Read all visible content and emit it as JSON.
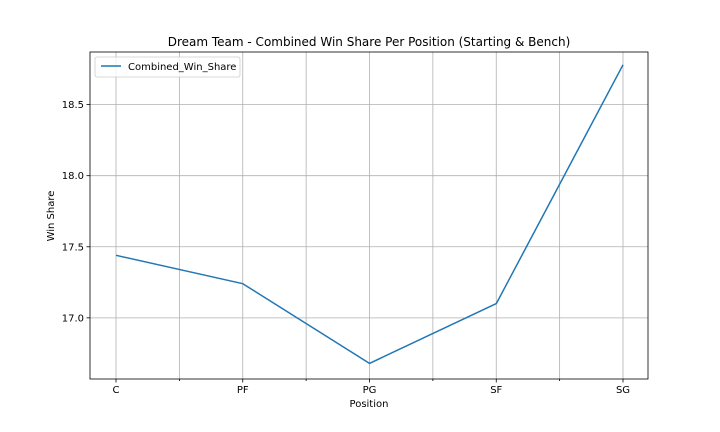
{
  "chart_data": {
    "type": "line",
    "title": "Dream Team - Combined Win Share Per Position (Starting & Bench)",
    "xlabel": "Position",
    "ylabel": "Win Share",
    "categories": [
      "C",
      "PF",
      "PG",
      "SF",
      "SG"
    ],
    "series": [
      {
        "name": "Combined_Win_Share",
        "values": [
          17.44,
          17.24,
          16.68,
          17.1,
          18.78
        ],
        "color": "#1f77b4"
      }
    ],
    "y_ticks": [
      17.0,
      17.5,
      18.0,
      18.5
    ],
    "y_tick_labels": [
      "17.0",
      "17.5",
      "18.0",
      "18.5"
    ],
    "ylim": [
      16.57,
      18.87
    ],
    "grid": true,
    "legend_position": "upper-left"
  }
}
